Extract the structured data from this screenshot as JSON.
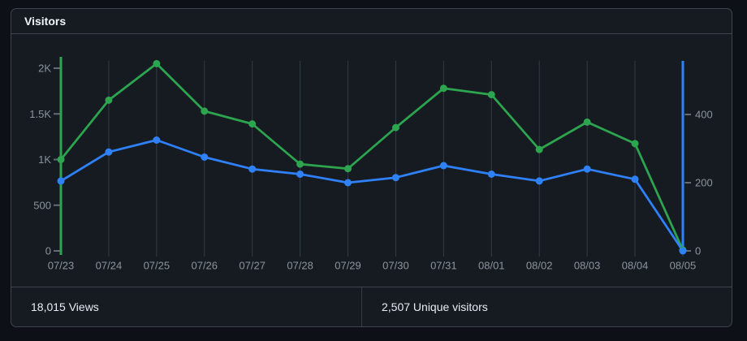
{
  "card": {
    "title": "Visitors"
  },
  "footer": {
    "views_total": "18,015 Views",
    "unique_total": "2,507 Unique visitors"
  },
  "colors": {
    "page_bg": "#0d1117",
    "card_bg": "#161b22",
    "card_border": "#3d444d",
    "grid_line": "#343b44",
    "axis_tick": "#656c76",
    "axis_label": "#8b949e",
    "title_text": "#f0f6fc",
    "footer_text": "#e6edf3",
    "views_green": "#2da44e",
    "unique_blue": "#2f81f7"
  },
  "chart_data": {
    "type": "line",
    "title": "Visitors",
    "categories": [
      "07/23",
      "07/24",
      "07/25",
      "07/26",
      "07/27",
      "07/28",
      "07/29",
      "07/30",
      "07/31",
      "08/01",
      "08/02",
      "08/03",
      "08/04",
      "08/05"
    ],
    "series": [
      {
        "name": "Views",
        "axis": "left",
        "color": "#2da44e",
        "values": [
          1000,
          1650,
          2050,
          1530,
          1390,
          950,
          900,
          1350,
          1780,
          1710,
          1110,
          1410,
          1175,
          10
        ],
        "total_label": "18,015 Views"
      },
      {
        "name": "Unique visitors",
        "axis": "right",
        "color": "#2f81f7",
        "values": [
          205,
          290,
          325,
          275,
          240,
          225,
          200,
          215,
          250,
          225,
          205,
          240,
          210,
          0
        ],
        "total_label": "2,507 Unique visitors"
      }
    ],
    "left_axis": {
      "min": 0,
      "max": 2000,
      "ticks": [
        [
          0,
          "0"
        ],
        [
          500,
          "500"
        ],
        [
          1000,
          "1K"
        ],
        [
          1500,
          "1.5K"
        ],
        [
          2000,
          "2K"
        ]
      ]
    },
    "right_axis": {
      "min": 0,
      "max": 400,
      "ticks": [
        [
          0,
          "0"
        ],
        [
          200,
          "200"
        ],
        [
          400,
          "400"
        ]
      ]
    },
    "legend": "none",
    "grid": "vertical-only"
  }
}
